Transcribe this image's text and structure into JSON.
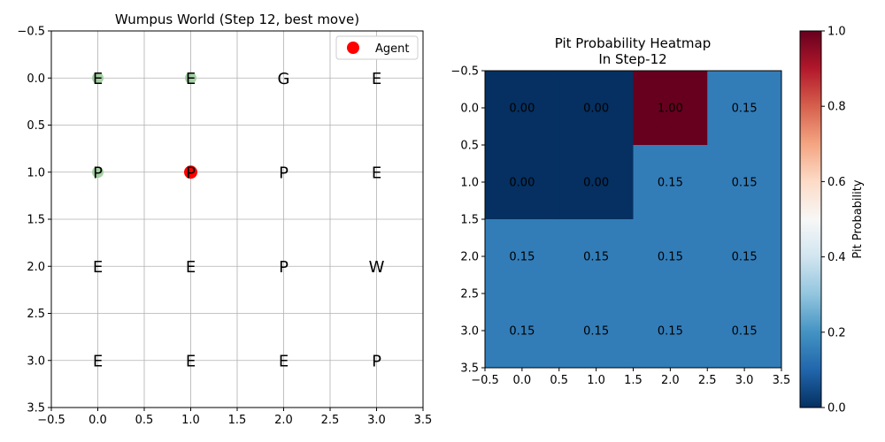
{
  "chart_data": [
    {
      "type": "scatter",
      "title": "Wumpus World (Step 12, best move)",
      "xlim": [
        -0.5,
        3.5
      ],
      "ylim": [
        3.5,
        -0.5
      ],
      "xticks": [
        "−0.5",
        "0.0",
        "0.5",
        "1.0",
        "1.5",
        "2.0",
        "2.5",
        "3.0",
        "3.5"
      ],
      "yticks": [
        "−0.5",
        "0.0",
        "0.5",
        "1.0",
        "1.5",
        "2.0",
        "2.5",
        "3.0",
        "3.5"
      ],
      "grid": true,
      "legend": {
        "placement": "top-right",
        "entries": [
          {
            "label": "Agent",
            "color": "#ff0000"
          }
        ]
      },
      "cells": [
        [
          "E",
          "E",
          "G",
          "E"
        ],
        [
          "P",
          "P",
          "P",
          "E"
        ],
        [
          "E",
          "E",
          "P",
          "W"
        ],
        [
          "E",
          "E",
          "E",
          "P"
        ]
      ],
      "visited": [
        {
          "x": 0,
          "y": 0
        },
        {
          "x": 1,
          "y": 0
        },
        {
          "x": 0,
          "y": 1
        }
      ],
      "visited_color": "#90c890",
      "agent": {
        "x": 1,
        "y": 1,
        "color": "#ff0000"
      }
    },
    {
      "type": "heatmap",
      "title": "Pit Probability Heatmap",
      "subtitle": "In Step-12",
      "xlim": [
        -0.5,
        3.5
      ],
      "ylim": [
        3.5,
        -0.5
      ],
      "xticks": [
        "−0.5",
        "0.0",
        "0.5",
        "1.0",
        "1.5",
        "2.0",
        "2.5",
        "3.0",
        "3.5"
      ],
      "yticks": [
        "−0.5",
        "0.0",
        "0.5",
        "1.0",
        "1.5",
        "2.0",
        "2.5",
        "3.0",
        "3.5"
      ],
      "values": [
        [
          0.0,
          0.0,
          1.0,
          0.15
        ],
        [
          0.0,
          0.0,
          0.15,
          0.15
        ],
        [
          0.15,
          0.15,
          0.15,
          0.15
        ],
        [
          0.15,
          0.15,
          0.15,
          0.15
        ]
      ],
      "labels": [
        [
          "0.00",
          "0.00",
          "1.00",
          "0.15"
        ],
        [
          "0.00",
          "0.00",
          "0.15",
          "0.15"
        ],
        [
          "0.15",
          "0.15",
          "0.15",
          "0.15"
        ],
        [
          "0.15",
          "0.15",
          "0.15",
          "0.15"
        ]
      ],
      "colormap": "RdBu_r",
      "colorbar": {
        "label": "Pit Probability",
        "range": [
          0,
          1
        ],
        "ticks": [
          "0.0",
          "0.2",
          "0.4",
          "0.6",
          "0.8",
          "1.0"
        ]
      }
    }
  ]
}
